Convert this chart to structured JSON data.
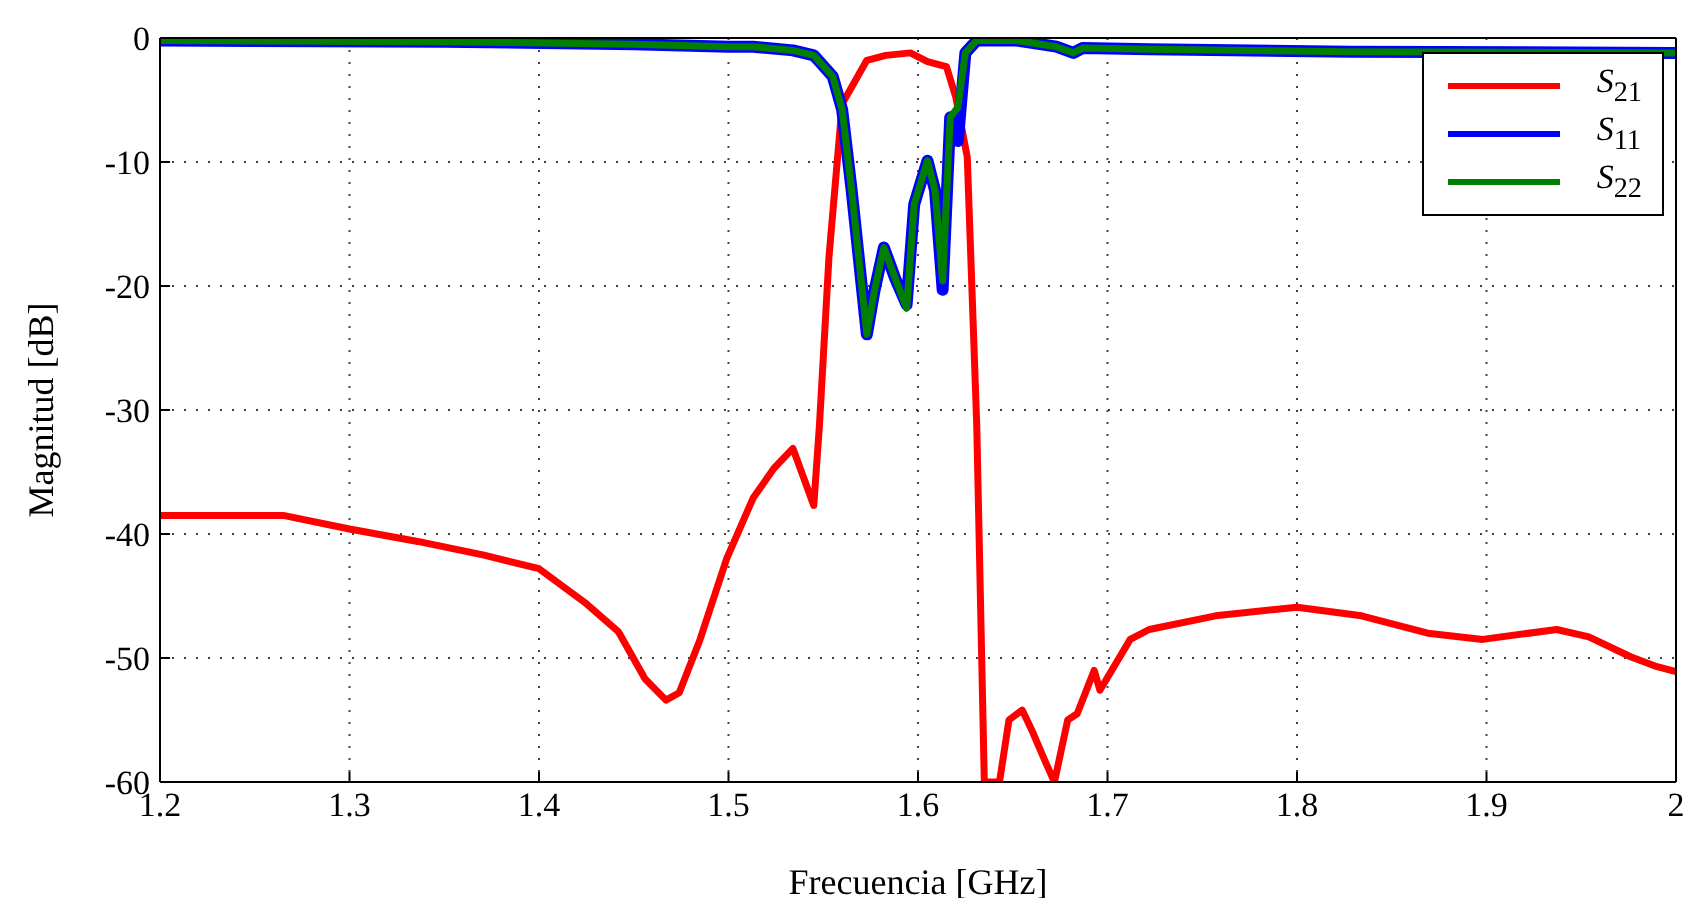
{
  "chart_data": {
    "type": "line",
    "xlabel": "Frecuencia [GHz]",
    "ylabel": "Magnitud [dB]",
    "xlim": [
      1.2,
      2
    ],
    "xticks": [
      1.2,
      1.3,
      1.4,
      1.5,
      1.6,
      1.7,
      1.8,
      1.9,
      2
    ],
    "ylim": [
      -60,
      0
    ],
    "yticks": [
      -60,
      -50,
      -40,
      -30,
      -20,
      -10,
      0
    ],
    "grid": true,
    "legend": "top right",
    "marker": "none",
    "line_style": "solid",
    "series": [
      {
        "name": "S$_{21}$",
        "color": "#ff0000",
        "x": [
          1.2,
          1.265,
          1.3,
          1.336,
          1.371,
          1.4,
          1.424,
          1.442,
          1.456,
          1.467,
          1.474,
          1.485,
          1.499,
          1.513,
          1.524,
          1.534,
          1.545,
          1.548,
          1.553,
          1.56,
          1.573,
          1.583,
          1.596,
          1.605,
          1.615,
          1.62,
          1.626,
          1.631,
          1.635,
          1.643,
          1.648,
          1.655,
          1.66,
          1.667,
          1.672,
          1.679,
          1.684,
          1.693,
          1.696,
          1.712,
          1.722,
          1.757,
          1.8,
          1.834,
          1.869,
          1.898,
          1.937,
          1.954,
          1.976,
          1.99,
          2
        ],
        "values": [
          -38.5,
          -38.5,
          -39.6,
          -40.6,
          -41.7,
          -42.8,
          -45.5,
          -47.9,
          -51.7,
          -53.4,
          -52.8,
          -48.5,
          -42,
          -37.1,
          -34.7,
          -33.1,
          -37.7,
          -31.2,
          -17.7,
          -5.3,
          -1.8,
          -1.4,
          -1.2,
          -1.9,
          -2.3,
          -4.8,
          -9.6,
          -31.2,
          -60,
          -60,
          -55,
          -54.2,
          -55.8,
          -58.3,
          -60,
          -55,
          -54.5,
          -51,
          -52.6,
          -48.5,
          -47.7,
          -46.6,
          -45.9,
          -46.6,
          -48,
          -48.5,
          -47.7,
          -48.3,
          -49.9,
          -50.7,
          -51.1
        ]
      },
      {
        "name": "S$_{11}$",
        "color": "#0000ff",
        "x": [
          1.2,
          1.35,
          1.45,
          1.5,
          1.513,
          1.534,
          1.545,
          1.555,
          1.56,
          1.565,
          1.573,
          1.577,
          1.582,
          1.588,
          1.594,
          1.598,
          1.605,
          1.609,
          1.613,
          1.617,
          1.621,
          1.625,
          1.631,
          1.652,
          1.673,
          1.682,
          1.687,
          1.722,
          1.828,
          2
        ],
        "values": [
          -0.2,
          -0.3,
          -0.5,
          -0.7,
          -0.7,
          -1,
          -1.4,
          -3.1,
          -5.8,
          -12.3,
          -23.9,
          -20.4,
          -16.9,
          -19.4,
          -21.5,
          -13.4,
          -9.9,
          -12.3,
          -20.3,
          -6.4,
          -8.3,
          -1.2,
          -0.2,
          -0.2,
          -0.7,
          -1.2,
          -0.8,
          -0.9,
          -1.1,
          -1.2
        ]
      },
      {
        "name": "S$_{22}$",
        "color": "#007f00",
        "x": [
          1.2,
          1.35,
          1.45,
          1.5,
          1.513,
          1.534,
          1.545,
          1.555,
          1.56,
          1.565,
          1.573,
          1.577,
          1.582,
          1.588,
          1.594,
          1.598,
          1.605,
          1.609,
          1.613,
          1.617,
          1.621,
          1.625,
          1.631,
          1.652,
          1.673,
          1.682,
          1.687,
          1.722,
          1.828,
          2
        ],
        "values": [
          -0.2,
          -0.3,
          -0.5,
          -0.7,
          -0.7,
          -1,
          -1.4,
          -3.1,
          -5.8,
          -12.3,
          -23.9,
          -20.4,
          -16.9,
          -19.4,
          -21.8,
          -13.4,
          -9.9,
          -12.3,
          -19.6,
          -6.4,
          -5.6,
          -1.2,
          -0.2,
          -0.2,
          -0.7,
          -1.2,
          -0.8,
          -0.9,
          -1.1,
          -1.2
        ]
      }
    ]
  }
}
